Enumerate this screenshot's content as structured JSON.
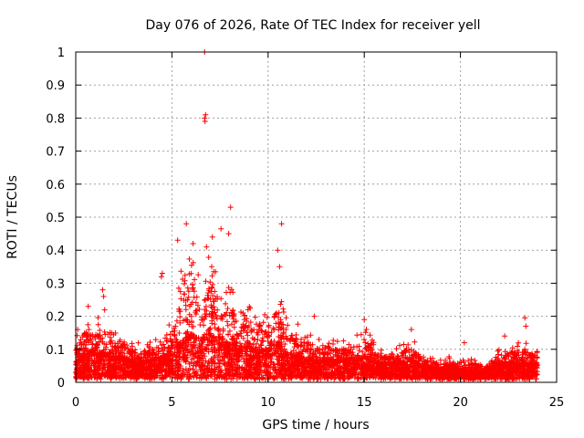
{
  "chart_data": {
    "type": "scatter",
    "title": "Day 076 of 2026, Rate Of TEC Index for receiver yell",
    "xlabel": "GPS time / hours",
    "ylabel": "ROTI / TECUs",
    "xlim": [
      0,
      25
    ],
    "ylim": [
      0,
      1
    ],
    "xticks": [
      0,
      5,
      10,
      15,
      20,
      25
    ],
    "xtick_labels": [
      "0",
      "5",
      "10",
      "15",
      "20",
      "25"
    ],
    "yticks": [
      0,
      0.1,
      0.2,
      0.3,
      0.4,
      0.5,
      0.6,
      0.7,
      0.8,
      0.9,
      1
    ],
    "ytick_labels": [
      "0",
      "0.1",
      "0.2",
      "0.3",
      "0.4",
      "0.5",
      "0.6",
      "0.7",
      "0.8",
      "0.9",
      "1"
    ],
    "grid": true,
    "marker": "+",
    "color": "#ff0000",
    "x_range_hours": [
      0,
      24
    ],
    "envelope": {
      "x": [
        0,
        0.5,
        1,
        1.5,
        2,
        2.5,
        3,
        3.5,
        4,
        4.5,
        5,
        5.5,
        6,
        6.5,
        7,
        7.5,
        8,
        8.5,
        9,
        9.5,
        10,
        10.5,
        11,
        11.5,
        12,
        12.5,
        13,
        13.5,
        14,
        14.5,
        15,
        15.5,
        16,
        16.5,
        17,
        17.5,
        18,
        18.5,
        19,
        19.5,
        20,
        20.5,
        21,
        21.5,
        22,
        22.5,
        23,
        23.5,
        24
      ],
      "upper": [
        0.15,
        0.2,
        0.2,
        0.22,
        0.15,
        0.17,
        0.12,
        0.12,
        0.13,
        0.15,
        0.2,
        0.35,
        0.42,
        0.3,
        0.4,
        0.35,
        0.3,
        0.3,
        0.25,
        0.2,
        0.22,
        0.3,
        0.2,
        0.18,
        0.18,
        0.14,
        0.14,
        0.13,
        0.13,
        0.14,
        0.18,
        0.12,
        0.1,
        0.1,
        0.12,
        0.14,
        0.09,
        0.08,
        0.07,
        0.08,
        0.07,
        0.07,
        0.07,
        0.06,
        0.1,
        0.12,
        0.12,
        0.12,
        0.1
      ],
      "typical": [
        0.06,
        0.08,
        0.09,
        0.08,
        0.07,
        0.07,
        0.05,
        0.05,
        0.06,
        0.07,
        0.08,
        0.12,
        0.14,
        0.12,
        0.14,
        0.13,
        0.11,
        0.1,
        0.1,
        0.09,
        0.09,
        0.11,
        0.08,
        0.07,
        0.07,
        0.06,
        0.06,
        0.06,
        0.06,
        0.06,
        0.07,
        0.05,
        0.05,
        0.05,
        0.05,
        0.06,
        0.04,
        0.04,
        0.03,
        0.04,
        0.03,
        0.03,
        0.03,
        0.03,
        0.05,
        0.05,
        0.05,
        0.05,
        0.05
      ]
    },
    "outliers": [
      {
        "x": 6.7,
        "y": 1.0
      },
      {
        "x": 6.75,
        "y": 0.81
      },
      {
        "x": 6.7,
        "y": 0.8
      },
      {
        "x": 6.72,
        "y": 0.79
      },
      {
        "x": 8.05,
        "y": 0.53
      },
      {
        "x": 5.75,
        "y": 0.48
      },
      {
        "x": 10.7,
        "y": 0.48
      },
      {
        "x": 7.55,
        "y": 0.465
      },
      {
        "x": 7.95,
        "y": 0.45
      },
      {
        "x": 5.3,
        "y": 0.43
      },
      {
        "x": 6.1,
        "y": 0.42
      },
      {
        "x": 6.8,
        "y": 0.41
      },
      {
        "x": 7.1,
        "y": 0.44
      },
      {
        "x": 4.5,
        "y": 0.33
      },
      {
        "x": 4.45,
        "y": 0.32
      },
      {
        "x": 1.4,
        "y": 0.28
      },
      {
        "x": 1.45,
        "y": 0.26
      },
      {
        "x": 0.65,
        "y": 0.23
      },
      {
        "x": 10.5,
        "y": 0.4
      },
      {
        "x": 10.6,
        "y": 0.35
      },
      {
        "x": 12.4,
        "y": 0.2
      },
      {
        "x": 15.0,
        "y": 0.19
      },
      {
        "x": 17.45,
        "y": 0.16
      },
      {
        "x": 22.3,
        "y": 0.14
      },
      {
        "x": 23.35,
        "y": 0.195
      },
      {
        "x": 23.4,
        "y": 0.17
      },
      {
        "x": 20.2,
        "y": 0.12
      },
      {
        "x": 0.1,
        "y": 0.16
      }
    ]
  }
}
